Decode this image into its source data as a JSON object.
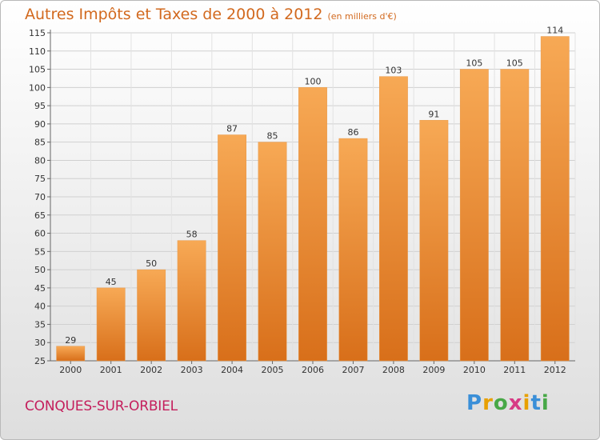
{
  "chart_title": "Autres Impôts et Taxes de 2000 à 2012",
  "chart_unit": "(en milliers d'€)",
  "commune_name": "CONQUES-SUR-ORBIEL",
  "logo_text": "Proxiti",
  "colors": {
    "bar_light": "#f7a955",
    "bar_dark": "#d86f1a",
    "title": "#d2691e",
    "commune": "#c41e5c"
  },
  "chart_data": {
    "type": "bar",
    "title": "Autres Impôts et Taxes de 2000 à 2012",
    "subtitle": "(en milliers d'€)",
    "categories": [
      "2000",
      "2001",
      "2002",
      "2003",
      "2004",
      "2005",
      "2006",
      "2007",
      "2008",
      "2009",
      "2010",
      "2011",
      "2012"
    ],
    "values": [
      29,
      45,
      50,
      58,
      87,
      85,
      100,
      86,
      103,
      91,
      105,
      105,
      114
    ],
    "ylim": [
      25,
      115
    ],
    "yticks": [
      25,
      30,
      35,
      40,
      45,
      50,
      55,
      60,
      65,
      70,
      75,
      80,
      85,
      90,
      95,
      100,
      105,
      110,
      115
    ],
    "grid": true,
    "legend": "none"
  }
}
